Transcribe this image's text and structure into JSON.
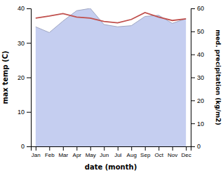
{
  "chart_data": {
    "type": "line",
    "xlabel": "date (month)",
    "ylabel": "max temp (C)",
    "y2label": "med. precipitation (kg/m2)",
    "categories": [
      "Jan",
      "Feb",
      "Mar",
      "Apr",
      "May",
      "Jun",
      "Jul",
      "Aug",
      "Sep",
      "Oct",
      "Nov",
      "Dec"
    ],
    "series": [
      {
        "type": "area",
        "axis": "y2",
        "color": "#c5cef0",
        "values": [
          52.0,
          49.5,
          54.5,
          59.0,
          60.0,
          53.0,
          52.0,
          52.5,
          56.5,
          57.0,
          53.5,
          55.5
        ]
      },
      {
        "type": "line",
        "color": "#c0504d",
        "values": [
          37.2,
          37.8,
          38.5,
          37.5,
          37.2,
          36.2,
          35.8,
          36.8,
          38.8,
          37.5,
          36.5,
          37.0
        ]
      }
    ],
    "ylim": [
      0,
      40
    ],
    "yticks": [
      0,
      10,
      20,
      30,
      40
    ],
    "y2lim": [
      0,
      60
    ],
    "y2ticks": [
      0,
      10,
      20,
      30,
      40,
      50,
      60
    ],
    "grid": false
  }
}
